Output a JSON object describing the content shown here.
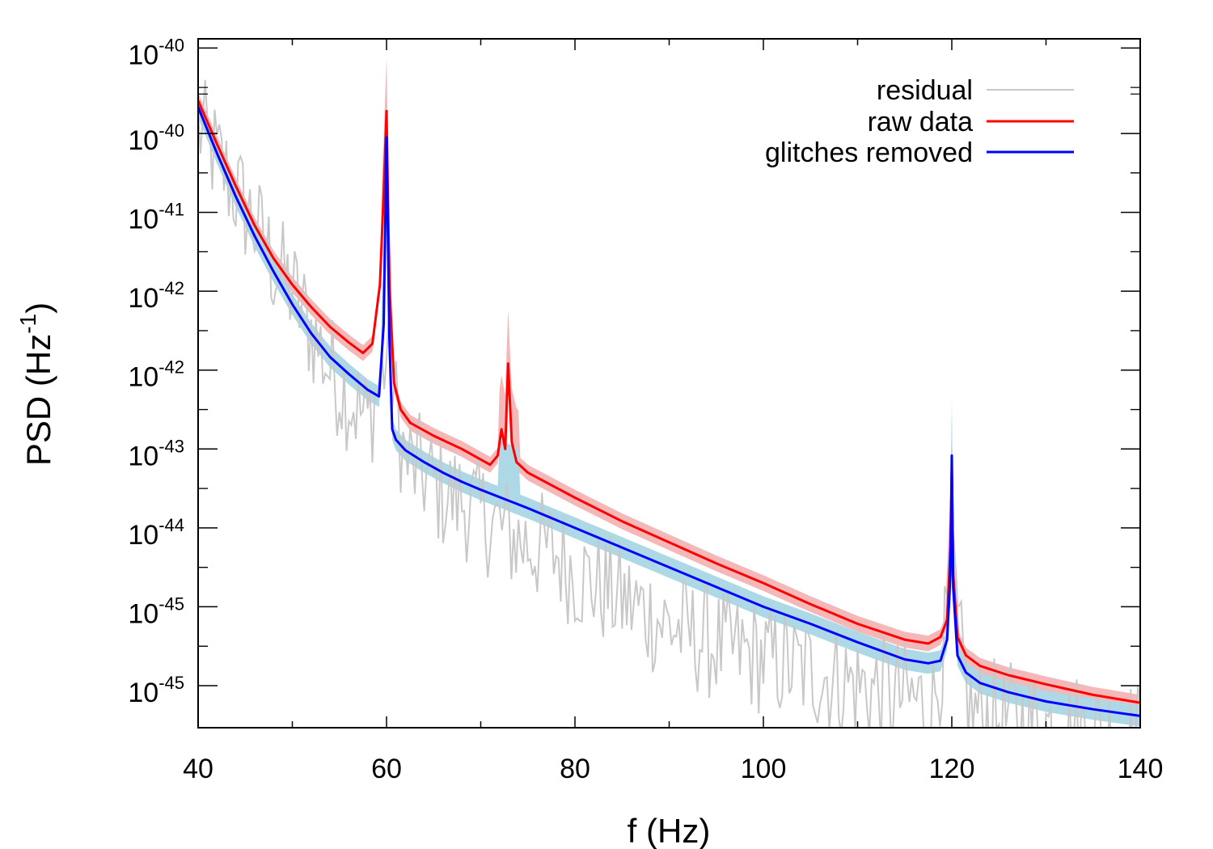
{
  "chart_data": {
    "type": "line",
    "xlabel": "f (Hz)",
    "ylabel": "PSD (Hz",
    "ylabel_exponent": "-1",
    "ylabel_suffix": ")",
    "xlim": [
      40,
      140
    ],
    "x_ticks": [
      40,
      60,
      80,
      100,
      120,
      140
    ],
    "y_scale": "log",
    "ylim_log10": [
      -45.37,
      -40.13
    ],
    "y_tick_labels": [
      {
        "base": "10",
        "exp": "-40",
        "log10": -40.2
      },
      {
        "base": "10",
        "exp": "-40",
        "log10": -40.85
      },
      {
        "base": "10",
        "exp": "-41",
        "log10": -41.45
      },
      {
        "base": "10",
        "exp": "-42",
        "log10": -42.05
      },
      {
        "base": "10",
        "exp": "-42",
        "log10": -42.65
      },
      {
        "base": "10",
        "exp": "-43",
        "log10": -43.25
      },
      {
        "base": "10",
        "exp": "-44",
        "log10": -43.85
      },
      {
        "base": "10",
        "exp": "-45",
        "log10": -44.45
      },
      {
        "base": "10",
        "exp": "-45",
        "log10": -45.05
      }
    ],
    "grid": false,
    "legend_position": "top-right",
    "series": [
      {
        "name": "residual",
        "color": "#c8c8c8",
        "style": "noisy",
        "x": [
          40,
          42,
          44,
          46,
          48,
          50,
          52,
          54,
          56,
          58,
          60,
          62,
          64,
          66,
          68,
          70,
          72,
          74,
          76,
          78,
          80,
          85,
          90,
          95,
          100,
          105,
          110,
          115,
          118,
          120,
          122,
          125,
          130,
          135,
          140
        ],
        "y_log10": [
          -40.75,
          -41.0,
          -41.25,
          -41.5,
          -41.8,
          -42.0,
          -42.3,
          -42.6,
          -42.8,
          -43.0,
          -42.5,
          -43.3,
          -43.4,
          -43.55,
          -43.6,
          -43.7,
          -43.8,
          -43.9,
          -43.95,
          -44.0,
          -44.15,
          -44.35,
          -44.55,
          -44.7,
          -44.8,
          -44.9,
          -45.0,
          -45.1,
          -45.15,
          -44.4,
          -45.2,
          -45.25,
          -45.3,
          -45.35,
          -45.4
        ]
      },
      {
        "name": "raw data",
        "color": "#ff0000",
        "band_color": "#f4b8b8",
        "x": [
          40,
          42,
          44,
          46,
          48,
          50,
          52,
          54,
          56,
          57.5,
          58.5,
          59.3,
          59.7,
          60.0,
          60.3,
          60.8,
          61.5,
          62.5,
          65,
          68,
          71,
          71.8,
          72.2,
          72.6,
          72.9,
          73.3,
          73.8,
          75,
          80,
          85,
          90,
          95,
          100,
          105,
          110,
          115,
          117.5,
          118.8,
          119.5,
          119.85,
          120.0,
          120.15,
          120.6,
          121.5,
          123,
          126,
          130,
          135,
          140
        ],
        "y_log10": [
          -40.6,
          -40.93,
          -41.25,
          -41.55,
          -41.8,
          -42.0,
          -42.17,
          -42.32,
          -42.44,
          -42.52,
          -42.45,
          -42.0,
          -41.3,
          -40.68,
          -42.0,
          -42.75,
          -42.95,
          -43.05,
          -43.15,
          -43.25,
          -43.37,
          -43.3,
          -43.1,
          -43.25,
          -42.6,
          -43.2,
          -43.35,
          -43.43,
          -43.62,
          -43.8,
          -43.96,
          -44.12,
          -44.27,
          -44.43,
          -44.58,
          -44.7,
          -44.73,
          -44.68,
          -44.55,
          -44.0,
          -43.4,
          -44.2,
          -44.68,
          -44.82,
          -44.9,
          -44.97,
          -45.04,
          -45.12,
          -45.18
        ]
      },
      {
        "name": "glitches removed",
        "color": "#0000ff",
        "band_color": "#add8e6",
        "x": [
          40,
          42,
          44,
          46,
          48,
          50,
          52,
          54,
          56,
          58,
          59.2,
          59.7,
          60.0,
          60.3,
          60.6,
          61.0,
          62,
          64,
          66,
          68,
          70,
          75,
          80,
          85,
          90,
          95,
          100,
          105,
          110,
          115,
          117.5,
          118.8,
          119.5,
          119.85,
          120.0,
          120.15,
          120.6,
          121.5,
          123,
          126,
          130,
          135,
          140
        ],
        "y_log10": [
          -40.65,
          -41.0,
          -41.33,
          -41.63,
          -41.9,
          -42.15,
          -42.37,
          -42.55,
          -42.68,
          -42.8,
          -42.85,
          -42.3,
          -40.88,
          -42.4,
          -43.1,
          -43.18,
          -43.26,
          -43.35,
          -43.43,
          -43.5,
          -43.56,
          -43.7,
          -43.85,
          -44.0,
          -44.15,
          -44.3,
          -44.45,
          -44.58,
          -44.72,
          -44.85,
          -44.88,
          -44.86,
          -44.7,
          -44.2,
          -43.3,
          -44.3,
          -44.82,
          -44.95,
          -45.03,
          -45.1,
          -45.17,
          -45.23,
          -45.28
        ]
      }
    ]
  }
}
